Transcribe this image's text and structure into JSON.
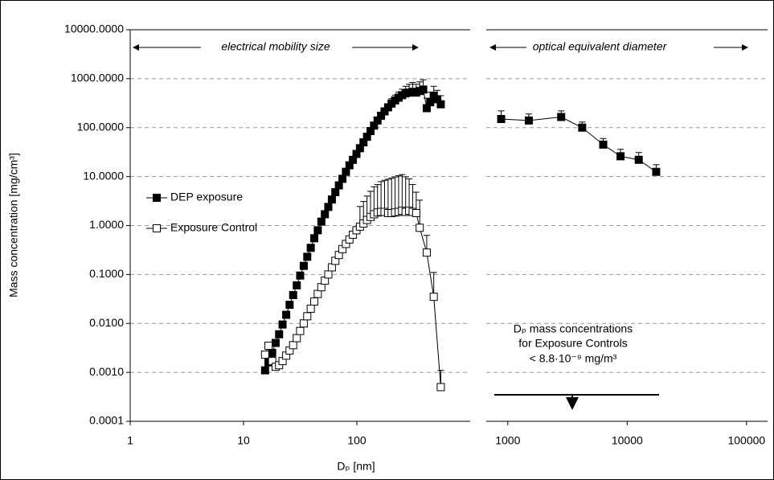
{
  "chart_data": [
    {
      "type": "line",
      "ylabel": "Mass concentration [mg/cm³]",
      "xlabel": "Dₚ [nm]",
      "annotation": "electrical mobility size",
      "xscale": "log",
      "yscale": "log",
      "grid": true,
      "legend": "left",
      "xlim": [
        1,
        1000
      ],
      "ylim": [
        0.0001,
        10000
      ],
      "xticks": [
        1,
        10,
        100
      ],
      "yticks": [
        {
          "value": 0.0001,
          "label": "0.0001"
        },
        {
          "value": 0.001,
          "label": "0.0010"
        },
        {
          "value": 0.01,
          "label": "0.0100"
        },
        {
          "value": 0.1,
          "label": "0.1000"
        },
        {
          "value": 1,
          "label": "1.0000"
        },
        {
          "value": 10,
          "label": "10.0000"
        },
        {
          "value": 100,
          "label": "100.0000"
        },
        {
          "value": 1000,
          "label": "1000.0000"
        },
        {
          "value": 10000,
          "label": "10000.0000"
        }
      ],
      "series": [
        {
          "name": "DEP exposure",
          "color": "#000000",
          "marker_fill": "#000000",
          "x": [
            15.5,
            16.6,
            17.9,
            19.2,
            20.6,
            22.1,
            23.8,
            25.5,
            27.4,
            29.5,
            31.6,
            34.0,
            36.5,
            39.2,
            42.1,
            45.2,
            48.6,
            52.2,
            56.0,
            60.2,
            64.6,
            69.4,
            74.6,
            80.1,
            86.0,
            92.3,
            99.2,
            106.5,
            114.4,
            122.9,
            132.0,
            141.7,
            152.2,
            163.5,
            175.6,
            188.6,
            202.5,
            217.5,
            233.6,
            250.9,
            269.5,
            289.4,
            310.8,
            333.8,
            358.5,
            385.1,
            413.6,
            444.2,
            477.0,
            512.3,
            550.2
          ],
          "values": [
            0.0011,
            0.0016,
            0.0025,
            0.004,
            0.006,
            0.0095,
            0.015,
            0.024,
            0.038,
            0.06,
            0.095,
            0.15,
            0.23,
            0.35,
            0.55,
            0.8,
            1.2,
            1.7,
            2.4,
            3.4,
            4.8,
            6.6,
            9,
            12.5,
            17,
            22,
            29,
            38,
            50,
            65,
            85,
            110,
            140,
            175,
            215,
            260,
            310,
            360,
            410,
            460,
            500,
            520,
            540,
            520,
            560,
            600,
            250,
            330,
            450,
            380,
            300
          ],
          "errors": [
            null,
            null,
            null,
            null,
            null,
            null,
            null,
            null,
            null,
            null,
            null,
            null,
            null,
            null,
            null,
            null,
            null,
            null,
            null,
            null,
            null,
            null,
            null,
            null,
            null,
            null,
            null,
            null,
            null,
            null,
            null,
            null,
            null,
            null,
            null,
            null,
            80,
            100,
            120,
            150,
            200,
            250,
            300,
            250,
            300,
            350,
            150,
            200,
            250,
            200,
            150
          ]
        },
        {
          "name": "Exposure Control",
          "color": "#000000",
          "marker_fill": "#ffffff",
          "x": [
            15.5,
            16.6,
            17.9,
            19.2,
            20.6,
            22.1,
            23.8,
            25.5,
            27.4,
            29.5,
            31.6,
            34.0,
            36.5,
            39.2,
            42.1,
            45.2,
            48.6,
            52.2,
            56.0,
            60.2,
            64.6,
            69.4,
            74.6,
            80.1,
            86.0,
            92.3,
            99.2,
            106.5,
            114.4,
            122.9,
            132.0,
            141.7,
            152.2,
            163.5,
            175.6,
            188.6,
            202.5,
            217.5,
            233.6,
            250.9,
            269.5,
            289.4,
            310.8,
            333.8,
            358.5,
            413.6,
            477.0,
            550.2
          ],
          "values": [
            0.0023,
            0.0035,
            0.0017,
            0.0013,
            0.0014,
            0.0017,
            0.0022,
            0.0028,
            0.0036,
            0.005,
            0.007,
            0.01,
            0.014,
            0.02,
            0.028,
            0.04,
            0.055,
            0.075,
            0.1,
            0.14,
            0.19,
            0.25,
            0.33,
            0.42,
            0.52,
            0.65,
            0.8,
            0.95,
            1.1,
            1.3,
            1.5,
            1.7,
            1.85,
            1.9,
            1.9,
            1.8,
            1.8,
            1.85,
            1.9,
            2.0,
            1.9,
            2.0,
            1.9,
            1.8,
            0.9,
            0.28,
            0.035,
            0.0005
          ],
          "errors": [
            null,
            null,
            null,
            null,
            null,
            null,
            null,
            null,
            null,
            null,
            null,
            null,
            null,
            null,
            null,
            null,
            null,
            null,
            null,
            null,
            null,
            null,
            null,
            null,
            null,
            null,
            null,
            1.5,
            2,
            2.7,
            3.5,
            4.5,
            5,
            6,
            6.5,
            7,
            7.5,
            8,
            8.5,
            9,
            8,
            7,
            5,
            3,
            2.4,
            0.35,
            0.075,
            0.0006
          ]
        }
      ]
    },
    {
      "type": "line",
      "annotation": "optical equivalent diameter",
      "note": [
        "Dₚ mass concentrations",
        "for Exposure Controls",
        "< 8.8·10⁻⁹ mg/m³"
      ],
      "xscale": "log",
      "yscale": "log",
      "grid": true,
      "xlim": [
        660,
        150000
      ],
      "ylim": [
        0.0001,
        10000
      ],
      "xticks": [
        1000,
        10000,
        100000
      ],
      "series": [
        {
          "color": "#000000",
          "marker_fill": "#000000",
          "x": [
            880,
            1500,
            2800,
            4200,
            6300,
            8800,
            12500,
            17500
          ],
          "values": [
            150,
            140,
            165,
            100,
            45,
            26,
            22,
            12.5
          ],
          "errors": [
            70,
            50,
            55,
            30,
            15,
            10,
            9,
            5
          ]
        }
      ]
    }
  ]
}
